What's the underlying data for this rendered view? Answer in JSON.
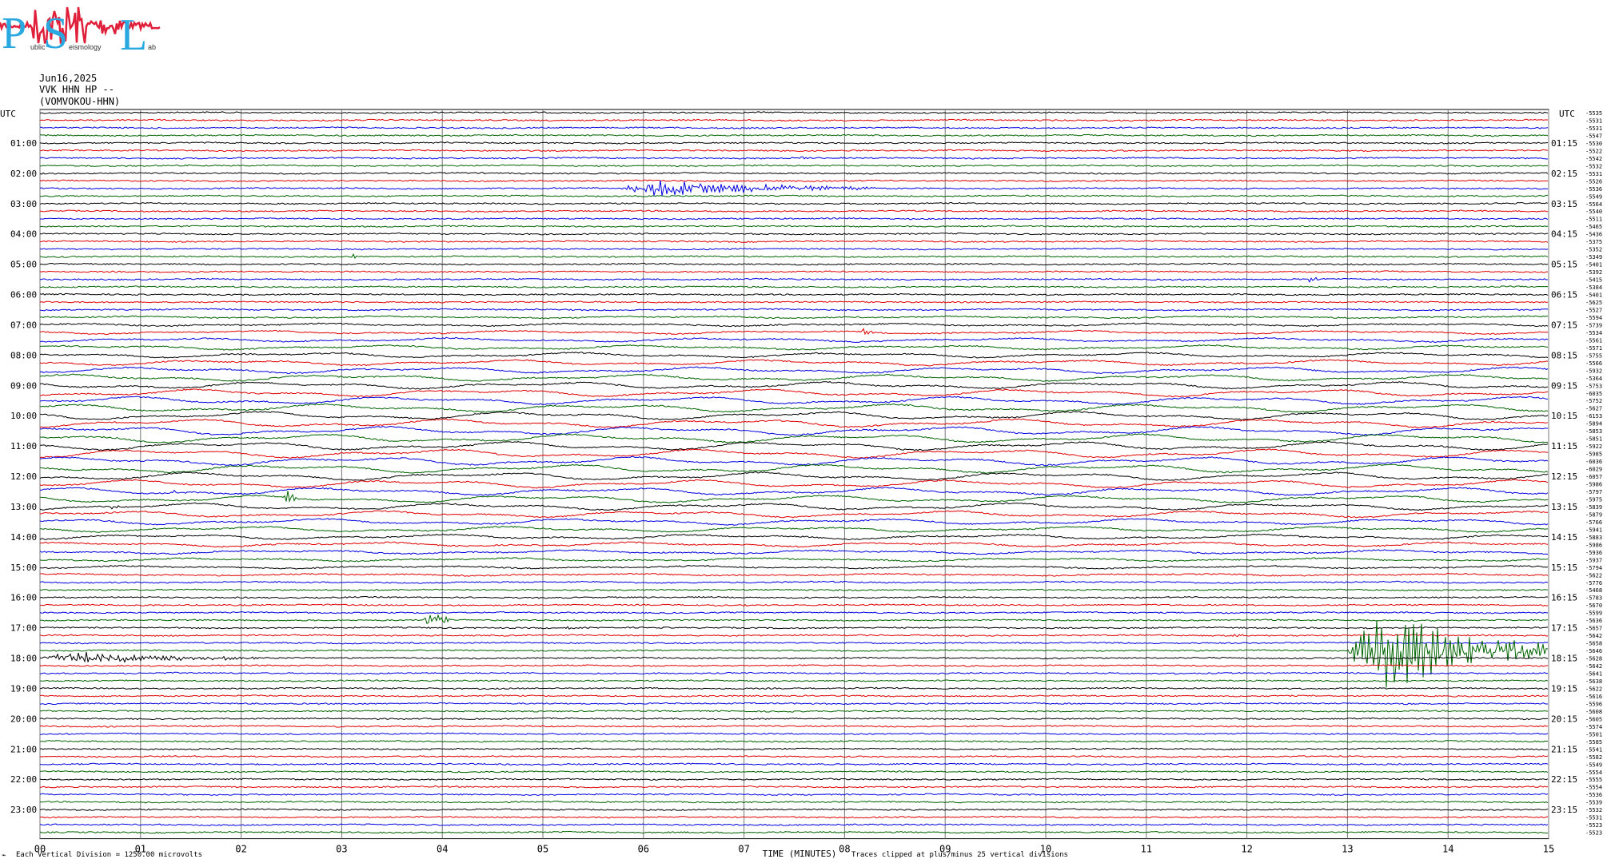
{
  "logo": {
    "letters": [
      "P",
      "S",
      "L"
    ],
    "small_words": [
      "ublic",
      "eismology",
      "ab"
    ]
  },
  "header": {
    "date": "Jun16,2025",
    "station": "VVK HHN HP --",
    "name": "(VOMVOKOU-HHN)"
  },
  "chart_data": {
    "type": "seismogram",
    "title": "",
    "left_axis_header": "UTC",
    "right_axis_header": "UTC",
    "left_hour_labels": [
      "01:00",
      "02:00",
      "03:00",
      "04:00",
      "05:00",
      "06:00",
      "07:00",
      "08:00",
      "09:00",
      "10:00",
      "11:00",
      "12:00",
      "13:00",
      "14:00",
      "15:00",
      "16:00",
      "17:00",
      "18:00",
      "19:00",
      "20:00",
      "21:00",
      "22:00",
      "23:00"
    ],
    "right_hour_labels": [
      "01:15",
      "02:15",
      "03:15",
      "04:15",
      "05:15",
      "06:15",
      "07:15",
      "08:15",
      "09:15",
      "10:15",
      "11:15",
      "12:15",
      "13:15",
      "14:15",
      "15:15",
      "16:15",
      "17:15",
      "18:15",
      "19:15",
      "20:15",
      "21:15",
      "22:15",
      "23:15"
    ],
    "x_ticks": [
      "00",
      "01",
      "02",
      "03",
      "04",
      "05",
      "06",
      "07",
      "08",
      "09",
      "10",
      "11",
      "12",
      "13",
      "14",
      "15"
    ],
    "xlabel": "TIME (MINUTES)",
    "xlim": [
      0,
      15
    ],
    "rows_per_hour": 4,
    "row_minutes": 15,
    "trace_colors": [
      "#000000",
      "#e00000",
      "#0000e0",
      "#006400"
    ],
    "right_trace_values": [
      "-5535",
      "-5531",
      "-5531",
      "-5547",
      "-5530",
      "-5522",
      "-5542",
      "-5532",
      "-5531",
      "-5526",
      "-5536",
      "-5549",
      "-5564",
      "-5540",
      "-5511",
      "-5465",
      "-5436",
      "-5375",
      "-5352",
      "-5349",
      "-5401",
      "-5392",
      "-5415",
      "-5384",
      "-5401",
      "-5625",
      "-5527",
      "-5594",
      "-5739",
      "-5534",
      "-5561",
      "-5571",
      "-5755",
      "-5566",
      "-5932",
      "-5364",
      "-5753",
      "-6035",
      "-5752",
      "-5627",
      "-6153",
      "-5894",
      "-5853",
      "-5851",
      "-5922",
      "-5985",
      "-6036",
      "-6029",
      "-6057",
      "-5986",
      "-5797",
      "-5975",
      "-5839",
      "-5879",
      "-5766",
      "-5941",
      "-5883",
      "-5986",
      "-5936",
      "-5937",
      "-5794",
      "-5622",
      "-5776",
      "-5468",
      "-5783",
      "-5670",
      "-5599",
      "-5636",
      "-5657",
      "-5642",
      "-5658",
      "-5646",
      "-5628",
      "-5642",
      "-5641",
      "-5638",
      "-5622",
      "-5616",
      "-5596",
      "-5608",
      "-5605",
      "-5574",
      "-5501",
      "-5585",
      "-5541",
      "-5582",
      "-5549",
      "-5554",
      "-5555",
      "-5554",
      "-5536",
      "-5539",
      "-5532",
      "-5531",
      "-5523",
      "-5523"
    ],
    "events": [
      {
        "row": 10,
        "start_min": 5.75,
        "end_min": 8.3,
        "amplitude": 12
      },
      {
        "row": 6,
        "start_min": 7.55,
        "end_min": 7.65,
        "amplitude": 5
      },
      {
        "row": 19,
        "start_min": 3.1,
        "end_min": 3.2,
        "amplitude": 4
      },
      {
        "row": 22,
        "start_min": 12.6,
        "end_min": 12.75,
        "amplitude": 5
      },
      {
        "row": 29,
        "start_min": 8.15,
        "end_min": 8.35,
        "amplitude": 5
      },
      {
        "row": 50,
        "start_min": 1.3,
        "end_min": 1.45,
        "amplitude": 4
      },
      {
        "row": 51,
        "start_min": 2.42,
        "end_min": 2.6,
        "amplitude": 14
      },
      {
        "row": 52,
        "start_min": 0.7,
        "end_min": 0.8,
        "amplitude": 6
      },
      {
        "row": 67,
        "start_min": 3.82,
        "end_min": 4.1,
        "amplitude": 14
      },
      {
        "row": 68,
        "start_min": 5.2,
        "end_min": 5.4,
        "amplitude": 4
      },
      {
        "row": 69,
        "start_min": 11.85,
        "end_min": 12.0,
        "amplitude": 5
      },
      {
        "row": 72,
        "start_min": 0.0,
        "end_min": 2.2,
        "amplitude": 9
      },
      {
        "row": 71,
        "start_min": 13.0,
        "end_min": 15.0,
        "amplitude": 60
      }
    ]
  },
  "footer": {
    "scale_note": "Each Vertical Division = 1250.00 microvolts",
    "clip_note": "Traces clipped at plus/minus 25 vertical divisions"
  }
}
